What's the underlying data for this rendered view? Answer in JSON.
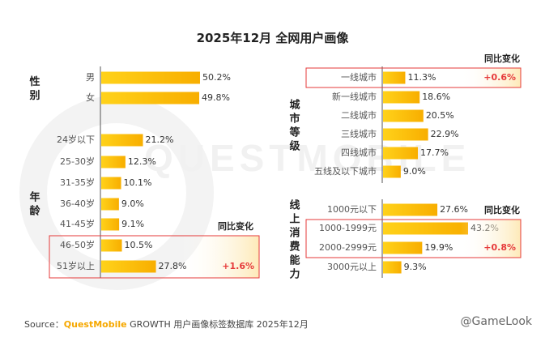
{
  "title": "2025年12月 全网用户画像",
  "source": {
    "label": "Source：",
    "brand": "QuestMobile",
    "text": "GROWTH 用户画像标签数据库 2025年12月"
  },
  "watermark": {
    "text": "QUESTMOBILE",
    "credit": "@GameLook"
  },
  "colors": {
    "bar_start": "#ffd21a",
    "bar_end": "#f8ae00",
    "highlight": "#e63a3a",
    "axis": "#555555"
  },
  "chart_data": [
    {
      "type": "bar",
      "title": "性别",
      "categories": [
        "男",
        "女"
      ],
      "values": [
        50.2,
        49.8
      ],
      "unit": "%"
    },
    {
      "type": "bar",
      "title": "年龄",
      "categories": [
        "24岁以下",
        "25-30岁",
        "31-35岁",
        "36-40岁",
        "41-45岁",
        "46-50岁",
        "51岁以上"
      ],
      "values": [
        21.2,
        12.3,
        10.1,
        9.0,
        9.1,
        10.5,
        27.8
      ],
      "unit": "%",
      "change_header": "同比变化",
      "changes": [
        {
          "category": "51岁以上",
          "label": "+1.6%"
        }
      ]
    },
    {
      "type": "bar",
      "title": "城市等级",
      "categories": [
        "一线城市",
        "新一线城市",
        "二线城市",
        "三线城市",
        "四线城市",
        "五线及以下城市"
      ],
      "values": [
        11.3,
        18.6,
        20.5,
        22.9,
        17.7,
        9.0
      ],
      "unit": "%",
      "change_header": "同比变化",
      "changes": [
        {
          "category": "一线城市",
          "label": "+0.6%"
        }
      ]
    },
    {
      "type": "bar",
      "title": "线上消费能力",
      "categories": [
        "1000元以下",
        "1000-1999元",
        "2000-2999元",
        "3000元以上"
      ],
      "values": [
        27.6,
        43.2,
        19.9,
        9.3
      ],
      "unit": "%",
      "change_header": "同比变化",
      "changes": [
        {
          "category": "2000-2999元",
          "label": "+0.8%"
        }
      ]
    }
  ]
}
